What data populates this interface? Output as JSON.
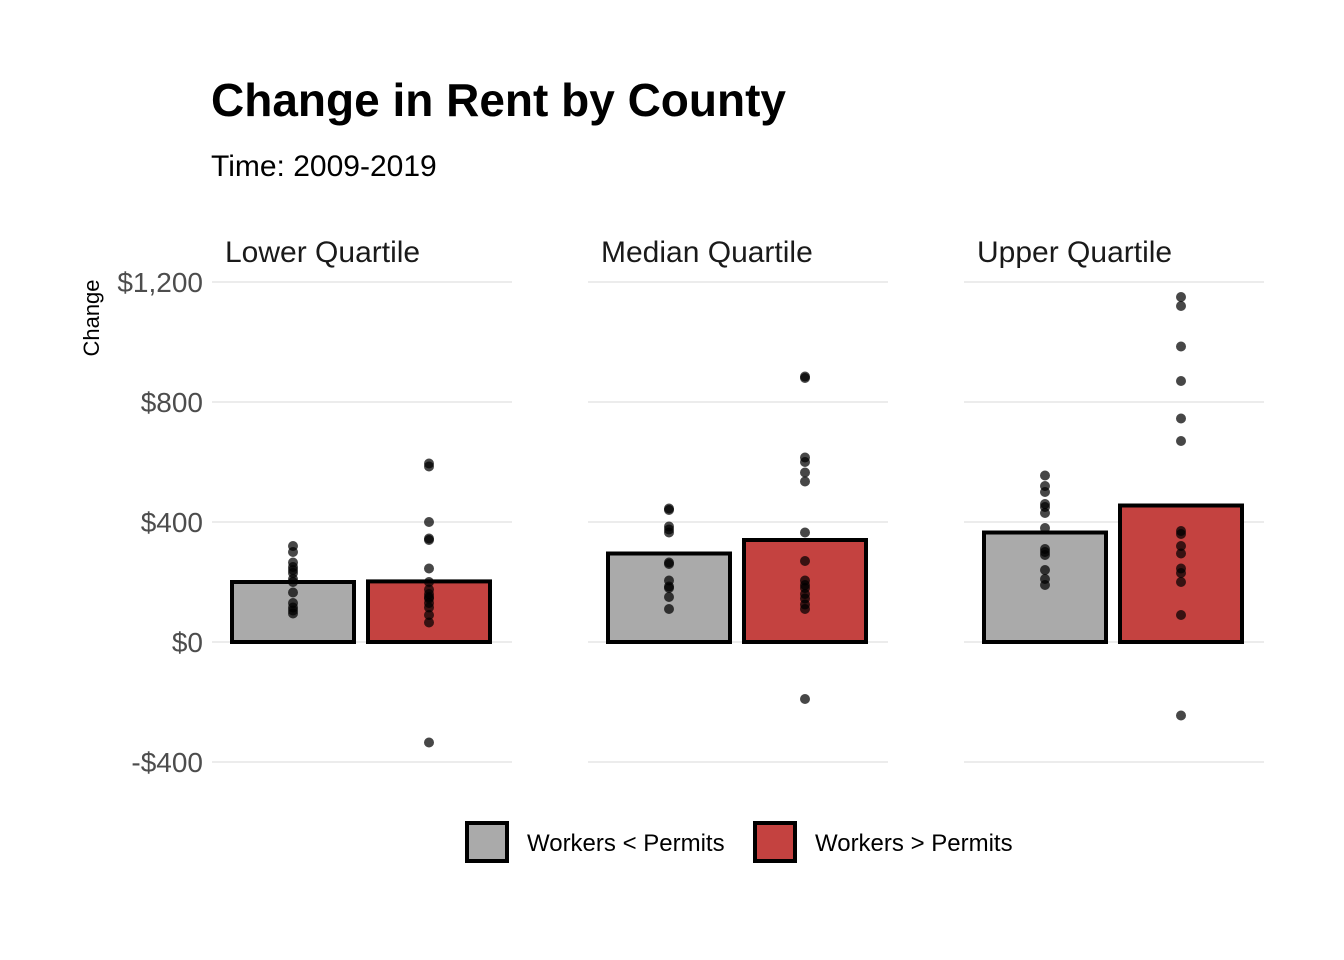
{
  "chart_data": {
    "type": "bar",
    "title": "Change in Rent by County",
    "subtitle": "Time: 2009-2019",
    "ylabel": "Change",
    "xlabel": "",
    "ylim": [
      -400,
      1200
    ],
    "yticks": [
      -400,
      0,
      400,
      800,
      1200
    ],
    "ytick_labels": [
      "-$400",
      "$0",
      "$400",
      "$800",
      "$1,200"
    ],
    "grid": true,
    "legend_position": "bottom",
    "series": [
      {
        "name": "Workers < Permits",
        "color": "#aaaaaa"
      },
      {
        "name": "Workers > Permits",
        "color": "#c44240"
      }
    ],
    "facets": [
      {
        "label": "Lower Quartile",
        "bars": [
          200,
          202
        ],
        "points": [
          [
            320,
            300,
            265,
            250,
            240,
            230,
            210,
            200,
            165,
            130,
            115,
            105,
            95
          ],
          [
            595,
            585,
            400,
            345,
            340,
            245,
            200,
            175,
            160,
            150,
            145,
            130,
            115,
            90,
            65,
            -335
          ]
        ]
      },
      {
        "label": "Median Quartile",
        "bars": [
          295,
          340
        ],
        "points": [
          [
            445,
            440,
            385,
            375,
            365,
            265,
            260,
            205,
            185,
            180,
            150,
            110
          ],
          [
            885,
            880,
            615,
            600,
            565,
            535,
            365,
            270,
            205,
            190,
            180,
            160,
            145,
            125,
            110,
            -190
          ]
        ]
      },
      {
        "label": "Upper Quartile",
        "bars": [
          365,
          455
        ],
        "points": [
          [
            555,
            520,
            500,
            460,
            450,
            430,
            380,
            310,
            300,
            290,
            240,
            210,
            190
          ],
          [
            1150,
            1120,
            985,
            870,
            745,
            670,
            370,
            360,
            320,
            295,
            245,
            230,
            200,
            90,
            -245
          ]
        ]
      }
    ]
  }
}
